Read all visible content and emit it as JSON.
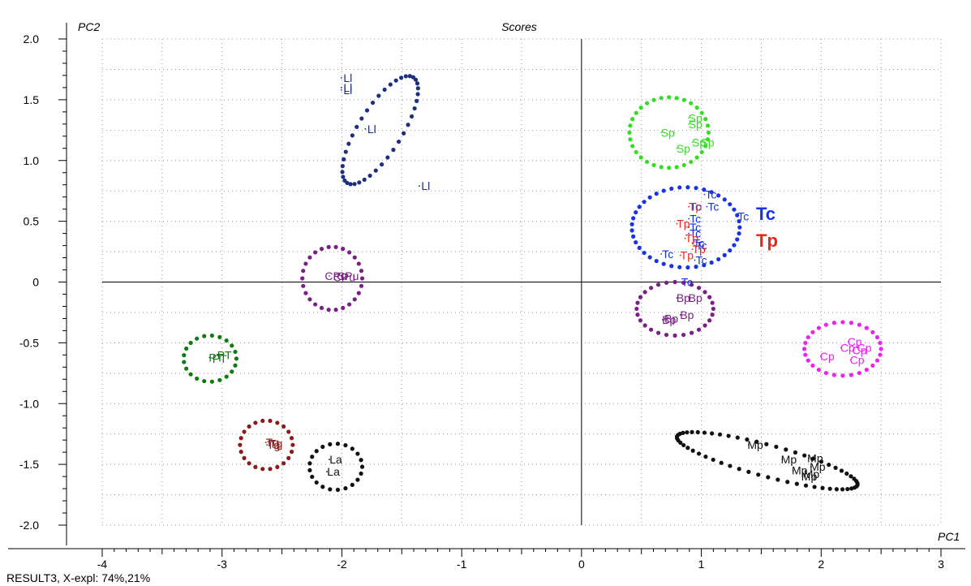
{
  "chart_data": {
    "type": "scatter",
    "title": "Scores",
    "xlabel": "PC1",
    "ylabel": "PC2",
    "xlim": [
      -4,
      3
    ],
    "ylim": [
      -2.0,
      2.0
    ],
    "x_ticks": [
      "-4",
      "-3",
      "-2",
      "-1",
      "0",
      "1",
      "2",
      "3"
    ],
    "y_ticks": [
      "-2.0",
      "-1.5",
      "-1.0",
      "-0.5",
      "0",
      "0.5",
      "1.0",
      "1.5",
      "2.0"
    ],
    "grid": "dotted",
    "legend_position": "right of Tc/Tp cluster",
    "groups": [
      {
        "label": "Ll",
        "color": "#1f2f7f",
        "points": [
          [
            -1.95,
            1.68
          ],
          [
            -1.95,
            1.6
          ],
          [
            -1.95,
            1.58
          ],
          [
            -1.75,
            1.26
          ],
          [
            -1.3,
            0.79
          ]
        ],
        "ellipse": {
          "cx": -1.68,
          "cy": 1.25,
          "rx": 0.52,
          "ry": 0.18,
          "angle_deg": -58
        }
      },
      {
        "label": "Sp",
        "color": "#33dd22",
        "points": [
          [
            0.95,
            1.35
          ],
          [
            0.95,
            1.3
          ],
          [
            0.72,
            1.23
          ],
          [
            0.85,
            1.1
          ],
          [
            0.98,
            1.15
          ],
          [
            1.05,
            1.15
          ]
        ],
        "ellipse": {
          "cx": 0.73,
          "cy": 1.23,
          "rx": 0.33,
          "ry": 0.29,
          "angle_deg": 0
        }
      },
      {
        "label": "Tc",
        "color": "#1633e6",
        "points": [
          [
            1.08,
            0.72
          ],
          [
            0.95,
            0.62
          ],
          [
            1.1,
            0.62
          ],
          [
            1.35,
            0.54
          ],
          [
            0.95,
            0.52
          ],
          [
            0.95,
            0.45
          ],
          [
            0.95,
            0.4
          ],
          [
            0.98,
            0.32
          ],
          [
            1.0,
            0.3
          ],
          [
            0.72,
            0.23
          ],
          [
            1.0,
            0.18
          ],
          [
            0.88,
            0.0
          ]
        ],
        "ellipse": {
          "cx": 0.87,
          "cy": 0.45,
          "rx": 0.45,
          "ry": 0.33,
          "angle_deg": 0
        }
      },
      {
        "label": "Tp",
        "color": "#e8271d",
        "points": [
          [
            0.95,
            0.62
          ],
          [
            0.85,
            0.48
          ],
          [
            0.92,
            0.36
          ],
          [
            0.98,
            0.27
          ],
          [
            0.88,
            0.22
          ]
        ]
      },
      {
        "label": "Bp",
        "color": "#7a1f85",
        "points": [
          [
            0.85,
            -0.13
          ],
          [
            0.95,
            -0.13
          ],
          [
            0.88,
            -0.27
          ],
          [
            0.75,
            -0.3
          ],
          [
            0.73,
            -0.31
          ]
        ],
        "ellipse": {
          "cx": 0.78,
          "cy": -0.22,
          "rx": 0.32,
          "ry": 0.22,
          "angle_deg": 0
        }
      },
      {
        "label": "Cp",
        "color": "#ee22ee",
        "points": [
          [
            2.28,
            -0.49
          ],
          [
            2.22,
            -0.54
          ],
          [
            2.32,
            -0.56
          ],
          [
            2.36,
            -0.54
          ],
          [
            2.05,
            -0.61
          ],
          [
            2.3,
            -0.64
          ]
        ],
        "ellipse": {
          "cx": 2.18,
          "cy": -0.55,
          "rx": 0.32,
          "ry": 0.22,
          "angle_deg": 0
        }
      },
      {
        "label": "Mp",
        "color": "#111111",
        "points": [
          [
            1.45,
            -1.34
          ],
          [
            1.73,
            -1.46
          ],
          [
            1.95,
            -1.45
          ],
          [
            1.97,
            -1.52
          ],
          [
            1.82,
            -1.55
          ],
          [
            1.92,
            -1.58
          ],
          [
            1.9,
            -1.6
          ]
        ],
        "ellipse": {
          "cx": 1.55,
          "cy": -1.47,
          "rx": 0.78,
          "ry": 0.13,
          "angle_deg": 15
        }
      },
      {
        "label": "CPu",
        "color": "#7a1f85",
        "points": [
          [
            -2.05,
            0.05
          ],
          [
            -1.95,
            0.05
          ],
          [
            -1.98,
            0.04
          ]
        ],
        "ellipse": {
          "cx": -2.08,
          "cy": 0.03,
          "rx": 0.25,
          "ry": 0.26,
          "angle_deg": 0
        }
      },
      {
        "label": "PT",
        "color": "#117a11",
        "points": [
          [
            -3.05,
            -0.62
          ],
          [
            -2.98,
            -0.6
          ],
          [
            -3.02,
            -0.63
          ]
        ],
        "ellipse": {
          "cx": -3.1,
          "cy": -0.63,
          "rx": 0.22,
          "ry": 0.19,
          "angle_deg": 0
        }
      },
      {
        "label": "Tg",
        "color": "#8b1a1a",
        "points": [
          [
            -2.58,
            -1.32
          ],
          [
            -2.55,
            -1.33
          ],
          [
            -2.57,
            -1.34
          ]
        ],
        "ellipse": {
          "cx": -2.63,
          "cy": -1.34,
          "rx": 0.22,
          "ry": 0.2,
          "angle_deg": 0
        }
      },
      {
        "label": "La",
        "color": "#111111",
        "points": [
          [
            -2.05,
            -1.46
          ],
          [
            -2.07,
            -1.56
          ]
        ],
        "ellipse": {
          "cx": -2.05,
          "cy": -1.52,
          "rx": 0.22,
          "ry": 0.19,
          "angle_deg": 0
        }
      }
    ],
    "legend": [
      {
        "label": "Tc",
        "color": "#1633e6"
      },
      {
        "label": "Tp",
        "color": "#e8271d"
      }
    ]
  },
  "footer": {
    "text": "RESULT3, X-expl: 74%,21%"
  }
}
